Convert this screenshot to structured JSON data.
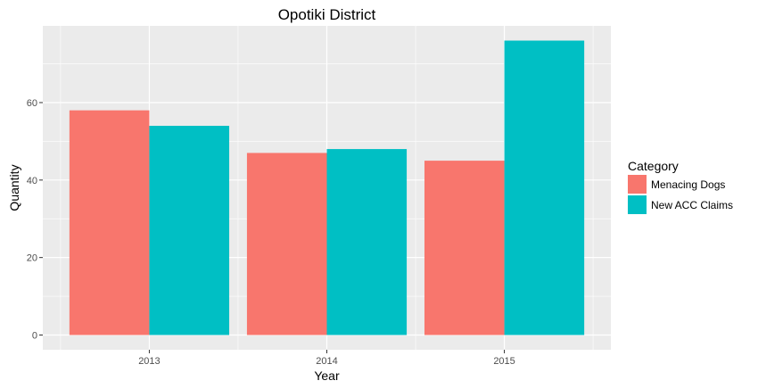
{
  "chart_data": {
    "type": "bar",
    "title": "Opotiki District",
    "xlabel": "Year",
    "ylabel": "Quantity",
    "categories": [
      "2013",
      "2014",
      "2015"
    ],
    "series": [
      {
        "name": "Menacing Dogs",
        "values": [
          58,
          47,
          45
        ],
        "color": "#F8766D"
      },
      {
        "name": "New ACC Claims",
        "values": [
          54,
          48,
          76
        ],
        "color": "#00BFC4"
      }
    ],
    "yticks": [
      0,
      20,
      40,
      60
    ],
    "ylim": [
      -3.8,
      79.8
    ],
    "legend": {
      "title": "Category",
      "position": "right"
    },
    "grid": true,
    "panel_background": "#EBEBEB",
    "grid_color": "#FFFFFF"
  }
}
